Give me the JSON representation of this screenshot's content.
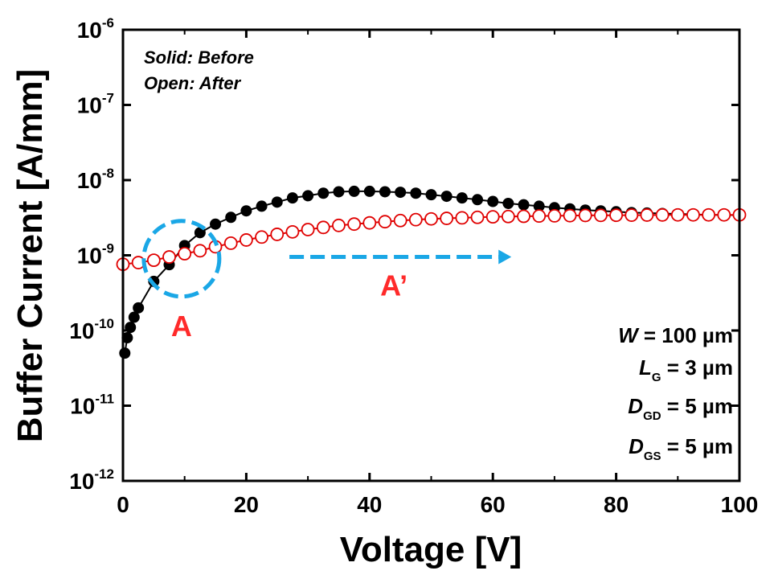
{
  "chart_data": {
    "type": "scatter",
    "xlabel": "Voltage [V]",
    "ylabel": "Buffer Current [A/mm]",
    "xlim": [
      0,
      100
    ],
    "ylim": [
      1e-12,
      1e-06
    ],
    "yscale": "log",
    "x_ticks": [
      "0",
      "20",
      "40",
      "60",
      "80",
      "100"
    ],
    "y_ticks": [
      {
        "base": "10",
        "exp": "-6",
        "value": 1e-06
      },
      {
        "base": "10",
        "exp": "-7",
        "value": 1e-07
      },
      {
        "base": "10",
        "exp": "-8",
        "value": 1e-08
      },
      {
        "base": "10",
        "exp": "-9",
        "value": 1e-09
      },
      {
        "base": "10",
        "exp": "-10",
        "value": 1e-10
      },
      {
        "base": "10",
        "exp": "-11",
        "value": 1e-11
      },
      {
        "base": "10",
        "exp": "-12",
        "value": 1e-12
      }
    ],
    "grid": false,
    "legend_notes": [
      "Solid: Before",
      "Open: After"
    ],
    "series": [
      {
        "style": "solid",
        "color": "#000000",
        "x": [
          0.3,
          0.7,
          1.2,
          1.8,
          2.5,
          5,
          7.5,
          10,
          12.5,
          15,
          17.5,
          20,
          22.5,
          25,
          27.5,
          30,
          32.5,
          35,
          37.5,
          40,
          42.5,
          45,
          47.5,
          50,
          52.5,
          55,
          57.5,
          60,
          62.5,
          65,
          67.5,
          70,
          72.5,
          75,
          77.5,
          80,
          82.5,
          85,
          87.5,
          90,
          92.5,
          95,
          97.5,
          100
        ],
        "y": [
          5e-11,
          8e-11,
          1.1e-10,
          1.5e-10,
          2e-10,
          4.5e-10,
          7.5e-10,
          1.35e-09,
          2e-09,
          2.6e-09,
          3.2e-09,
          3.9e-09,
          4.5e-09,
          5.1e-09,
          5.8e-09,
          6.2e-09,
          6.7e-09,
          7e-09,
          7.1e-09,
          7.1e-09,
          7e-09,
          6.9e-09,
          6.7e-09,
          6.4e-09,
          6.1e-09,
          5.8e-09,
          5.5e-09,
          5.2e-09,
          4.9e-09,
          4.7e-09,
          4.5e-09,
          4.3e-09,
          4.15e-09,
          4e-09,
          3.9e-09,
          3.8e-09,
          3.7e-09,
          3.65e-09,
          3.6e-09,
          3.55e-09,
          3.5e-09,
          3.45e-09,
          3.45e-09,
          3.4e-09
        ]
      },
      {
        "style": "open",
        "color": "#e00000",
        "x": [
          0,
          2.5,
          5,
          7.5,
          10,
          12.5,
          15,
          17.5,
          20,
          22.5,
          25,
          27.5,
          30,
          32.5,
          35,
          37.5,
          40,
          42.5,
          45,
          47.5,
          50,
          52.5,
          55,
          57.5,
          60,
          62.5,
          65,
          67.5,
          70,
          72.5,
          75,
          77.5,
          80,
          82.5,
          85,
          87.5,
          90,
          92.5,
          95,
          97.5,
          100
        ],
        "y": [
          7.6e-10,
          8e-10,
          8.6e-10,
          9.5e-10,
          1.05e-09,
          1.15e-09,
          1.3e-09,
          1.45e-09,
          1.6e-09,
          1.75e-09,
          1.9e-09,
          2.05e-09,
          2.2e-09,
          2.35e-09,
          2.5e-09,
          2.6e-09,
          2.7e-09,
          2.8e-09,
          2.9e-09,
          2.98e-09,
          3.05e-09,
          3.1e-09,
          3.15e-09,
          3.2e-09,
          3.25e-09,
          3.28e-09,
          3.3e-09,
          3.33e-09,
          3.35e-09,
          3.37e-09,
          3.39e-09,
          3.4e-09,
          3.41e-09,
          3.42e-09,
          3.43e-09,
          3.44e-09,
          3.45e-09,
          3.45e-09,
          3.45e-09,
          3.45e-09,
          3.45e-09
        ]
      }
    ],
    "parameters": [
      {
        "sym": "W",
        "sub": "",
        "rest": " = 100 µm"
      },
      {
        "sym": "L",
        "sub": "G",
        "rest": " = 3 µm"
      },
      {
        "sym": "D",
        "sub": "GD",
        "rest": " = 5 µm"
      },
      {
        "sym": "D",
        "sub": "GS",
        "rest": " = 5 µm"
      }
    ],
    "annotations": {
      "circle_label": "A",
      "circle_color": "#1aa7e6",
      "arrow_label": "A’",
      "arrow_color": "#1aa7e6",
      "label_color": "#ff2a2a",
      "circle_center": {
        "x": 9.5,
        "y": 9e-10
      },
      "arrow_from_x": 27,
      "arrow_to_x": 63,
      "arrow_y": 1e-09
    }
  }
}
